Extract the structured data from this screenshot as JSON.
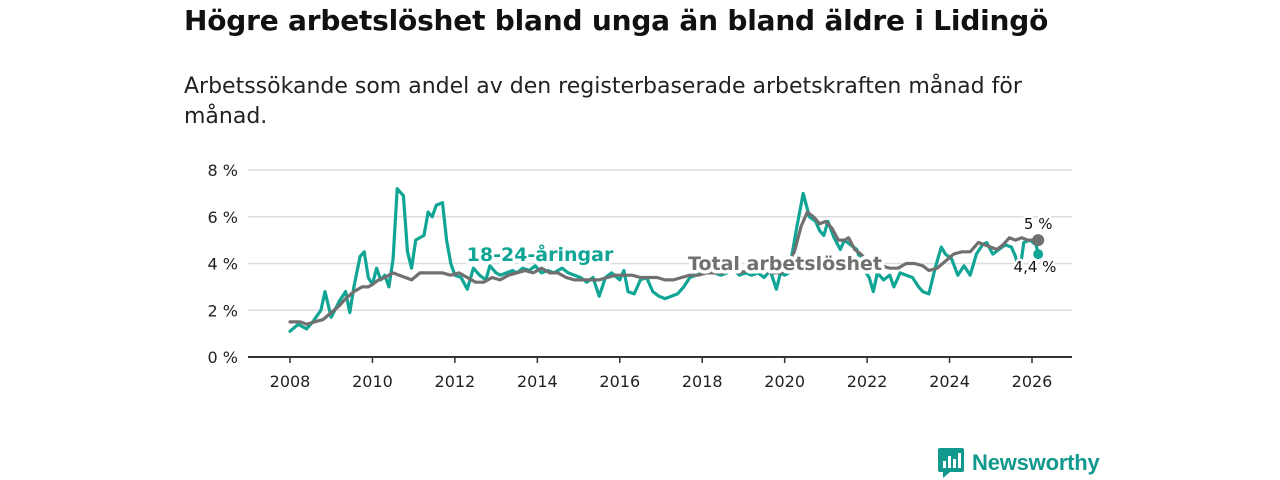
{
  "title": "Högre arbetslöshet bland unga än bland äldre i Lidingö",
  "subtitle": "Arbetssökande som andel av den registerbaserade arbetskraften månad för månad.",
  "brand": "Newsworthy",
  "colors": {
    "youth": "#10a595",
    "total": "#707070",
    "grid": "#dddddd",
    "axis": "#333333",
    "brand": "#11998e"
  },
  "chart_data": {
    "type": "line",
    "title": "Högre arbetslöshet bland unga än bland äldre i Lidingö",
    "xlabel": "",
    "ylabel": "",
    "xlim": [
      2007.5,
      2027.0
    ],
    "ylim": [
      0,
      8
    ],
    "x_ticks": [
      "2008",
      "2010",
      "2012",
      "2014",
      "2016",
      "2018",
      "2020",
      "2022",
      "2024",
      "2026"
    ],
    "y_ticks": [
      "0 %",
      "2 %",
      "4 %",
      "6 %",
      "8 %"
    ],
    "series": [
      {
        "name": "18-24-åringar",
        "label": "18-24-åringar",
        "end_label": "4,4 %",
        "points": [
          [
            2008.0,
            1.1
          ],
          [
            2008.2,
            1.4
          ],
          [
            2008.4,
            1.2
          ],
          [
            2008.55,
            1.5
          ],
          [
            2008.75,
            2.0
          ],
          [
            2008.85,
            2.8
          ],
          [
            2009.0,
            1.7
          ],
          [
            2009.2,
            2.4
          ],
          [
            2009.35,
            2.8
          ],
          [
            2009.45,
            1.9
          ],
          [
            2009.55,
            3.0
          ],
          [
            2009.7,
            4.3
          ],
          [
            2009.8,
            4.5
          ],
          [
            2009.9,
            3.4
          ],
          [
            2010.0,
            3.1
          ],
          [
            2010.1,
            3.8
          ],
          [
            2010.2,
            3.3
          ],
          [
            2010.3,
            3.5
          ],
          [
            2010.4,
            3.0
          ],
          [
            2010.5,
            4.2
          ],
          [
            2010.6,
            7.2
          ],
          [
            2010.75,
            6.9
          ],
          [
            2010.85,
            4.5
          ],
          [
            2010.95,
            3.8
          ],
          [
            2011.05,
            5.0
          ],
          [
            2011.25,
            5.2
          ],
          [
            2011.35,
            6.2
          ],
          [
            2011.45,
            6.0
          ],
          [
            2011.55,
            6.5
          ],
          [
            2011.7,
            6.6
          ],
          [
            2011.8,
            5.0
          ],
          [
            2011.9,
            4.0
          ],
          [
            2012.0,
            3.5
          ],
          [
            2012.15,
            3.4
          ],
          [
            2012.3,
            2.9
          ],
          [
            2012.45,
            3.8
          ],
          [
            2012.6,
            3.5
          ],
          [
            2012.75,
            3.3
          ],
          [
            2012.85,
            3.9
          ],
          [
            2013.0,
            3.6
          ],
          [
            2013.1,
            3.5
          ],
          [
            2013.25,
            3.6
          ],
          [
            2013.4,
            3.7
          ],
          [
            2013.5,
            3.6
          ],
          [
            2013.65,
            3.8
          ],
          [
            2013.8,
            3.7
          ],
          [
            2013.95,
            3.9
          ],
          [
            2014.1,
            3.6
          ],
          [
            2014.25,
            3.7
          ],
          [
            2014.4,
            3.6
          ],
          [
            2014.6,
            3.8
          ],
          [
            2014.75,
            3.6
          ],
          [
            2014.9,
            3.5
          ],
          [
            2015.05,
            3.4
          ],
          [
            2015.2,
            3.2
          ],
          [
            2015.35,
            3.4
          ],
          [
            2015.5,
            2.6
          ],
          [
            2015.65,
            3.4
          ],
          [
            2015.8,
            3.6
          ],
          [
            2016.0,
            3.3
          ],
          [
            2016.1,
            3.7
          ],
          [
            2016.2,
            2.8
          ],
          [
            2016.35,
            2.7
          ],
          [
            2016.5,
            3.3
          ],
          [
            2016.65,
            3.4
          ],
          [
            2016.8,
            2.8
          ],
          [
            2016.95,
            2.6
          ],
          [
            2017.1,
            2.5
          ],
          [
            2017.25,
            2.6
          ],
          [
            2017.4,
            2.7
          ],
          [
            2017.55,
            3.0
          ],
          [
            2017.7,
            3.4
          ],
          [
            2017.85,
            3.5
          ],
          [
            2018.0,
            3.6
          ],
          [
            2018.15,
            3.7
          ],
          [
            2018.3,
            3.6
          ],
          [
            2018.45,
            3.5
          ],
          [
            2018.6,
            3.6
          ],
          [
            2018.75,
            3.8
          ],
          [
            2018.9,
            3.5
          ],
          [
            2019.05,
            3.6
          ],
          [
            2019.2,
            3.5
          ],
          [
            2019.35,
            3.6
          ],
          [
            2019.5,
            3.4
          ],
          [
            2019.65,
            3.7
          ],
          [
            2019.8,
            2.9
          ],
          [
            2019.9,
            3.6
          ],
          [
            2020.0,
            3.5
          ],
          [
            2020.1,
            3.6
          ],
          [
            2020.3,
            5.6
          ],
          [
            2020.45,
            7.0
          ],
          [
            2020.6,
            6.0
          ],
          [
            2020.75,
            5.8
          ],
          [
            2020.85,
            5.4
          ],
          [
            2020.95,
            5.2
          ],
          [
            2021.05,
            5.8
          ],
          [
            2021.2,
            5.1
          ],
          [
            2021.35,
            4.6
          ],
          [
            2021.45,
            5.0
          ],
          [
            2021.6,
            4.8
          ],
          [
            2021.75,
            4.6
          ],
          [
            2021.9,
            3.8
          ],
          [
            2022.05,
            3.4
          ],
          [
            2022.15,
            2.8
          ],
          [
            2022.25,
            3.6
          ],
          [
            2022.4,
            3.3
          ],
          [
            2022.55,
            3.5
          ],
          [
            2022.65,
            3.0
          ],
          [
            2022.8,
            3.6
          ],
          [
            2022.95,
            3.5
          ],
          [
            2023.1,
            3.4
          ],
          [
            2023.25,
            3.0
          ],
          [
            2023.35,
            2.8
          ],
          [
            2023.5,
            2.7
          ],
          [
            2023.65,
            3.8
          ],
          [
            2023.8,
            4.7
          ],
          [
            2023.9,
            4.4
          ],
          [
            2024.05,
            4.2
          ],
          [
            2024.2,
            3.5
          ],
          [
            2024.35,
            3.9
          ],
          [
            2024.5,
            3.5
          ],
          [
            2024.65,
            4.4
          ],
          [
            2024.8,
            4.8
          ],
          [
            2024.9,
            4.9
          ],
          [
            2025.05,
            4.4
          ],
          [
            2025.2,
            4.6
          ],
          [
            2025.35,
            4.8
          ],
          [
            2025.5,
            4.7
          ],
          [
            2025.6,
            4.3
          ],
          [
            2025.7,
            3.6
          ],
          [
            2025.8,
            4.9
          ],
          [
            2025.95,
            5.0
          ],
          [
            2026.1,
            4.8
          ],
          [
            2026.15,
            4.4
          ]
        ]
      },
      {
        "name": "Total arbetslöshet",
        "label": "Total arbetslöshet",
        "end_label": "5 %",
        "points": [
          [
            2008.0,
            1.5
          ],
          [
            2008.25,
            1.5
          ],
          [
            2008.4,
            1.4
          ],
          [
            2008.6,
            1.5
          ],
          [
            2008.8,
            1.6
          ],
          [
            2009.0,
            1.9
          ],
          [
            2009.2,
            2.2
          ],
          [
            2009.35,
            2.5
          ],
          [
            2009.55,
            2.8
          ],
          [
            2009.75,
            3.0
          ],
          [
            2009.9,
            3.0
          ],
          [
            2010.0,
            3.1
          ],
          [
            2010.15,
            3.3
          ],
          [
            2010.3,
            3.4
          ],
          [
            2010.5,
            3.6
          ],
          [
            2010.65,
            3.5
          ],
          [
            2010.8,
            3.4
          ],
          [
            2010.95,
            3.3
          ],
          [
            2011.15,
            3.6
          ],
          [
            2011.3,
            3.6
          ],
          [
            2011.5,
            3.6
          ],
          [
            2011.7,
            3.6
          ],
          [
            2011.9,
            3.5
          ],
          [
            2012.1,
            3.6
          ],
          [
            2012.3,
            3.4
          ],
          [
            2012.5,
            3.2
          ],
          [
            2012.7,
            3.2
          ],
          [
            2012.9,
            3.4
          ],
          [
            2013.1,
            3.3
          ],
          [
            2013.3,
            3.5
          ],
          [
            2013.5,
            3.6
          ],
          [
            2013.7,
            3.7
          ],
          [
            2013.9,
            3.6
          ],
          [
            2014.1,
            3.8
          ],
          [
            2014.3,
            3.6
          ],
          [
            2014.5,
            3.6
          ],
          [
            2014.7,
            3.4
          ],
          [
            2014.9,
            3.3
          ],
          [
            2015.1,
            3.3
          ],
          [
            2015.3,
            3.3
          ],
          [
            2015.5,
            3.3
          ],
          [
            2015.7,
            3.4
          ],
          [
            2015.9,
            3.5
          ],
          [
            2016.1,
            3.5
          ],
          [
            2016.3,
            3.5
          ],
          [
            2016.5,
            3.4
          ],
          [
            2016.7,
            3.4
          ],
          [
            2016.9,
            3.4
          ],
          [
            2017.1,
            3.3
          ],
          [
            2017.3,
            3.3
          ],
          [
            2017.5,
            3.4
          ],
          [
            2017.7,
            3.5
          ],
          [
            2017.9,
            3.5
          ],
          [
            2018.1,
            3.6
          ],
          [
            2018.3,
            3.6
          ],
          [
            2018.5,
            3.6
          ],
          [
            2018.7,
            3.7
          ],
          [
            2018.9,
            3.6
          ],
          [
            2019.1,
            3.7
          ],
          [
            2019.3,
            3.7
          ],
          [
            2019.5,
            3.7
          ],
          [
            2019.7,
            3.6
          ],
          [
            2019.9,
            3.6
          ],
          [
            2020.1,
            3.8
          ],
          [
            2020.25,
            4.6
          ],
          [
            2020.4,
            5.6
          ],
          [
            2020.55,
            6.2
          ],
          [
            2020.7,
            6.0
          ],
          [
            2020.85,
            5.7
          ],
          [
            2021.0,
            5.8
          ],
          [
            2021.15,
            5.5
          ],
          [
            2021.3,
            5.0
          ],
          [
            2021.45,
            5.0
          ],
          [
            2021.55,
            5.1
          ],
          [
            2021.7,
            4.6
          ],
          [
            2021.85,
            4.4
          ],
          [
            2022.0,
            4.1
          ],
          [
            2022.15,
            4.0
          ],
          [
            2022.35,
            3.9
          ],
          [
            2022.55,
            3.8
          ],
          [
            2022.75,
            3.8
          ],
          [
            2022.95,
            4.0
          ],
          [
            2023.15,
            4.0
          ],
          [
            2023.35,
            3.9
          ],
          [
            2023.5,
            3.7
          ],
          [
            2023.7,
            3.8
          ],
          [
            2023.9,
            4.1
          ],
          [
            2024.1,
            4.4
          ],
          [
            2024.3,
            4.5
          ],
          [
            2024.5,
            4.5
          ],
          [
            2024.7,
            4.9
          ],
          [
            2024.85,
            4.8
          ],
          [
            2025.0,
            4.7
          ],
          [
            2025.15,
            4.6
          ],
          [
            2025.3,
            4.8
          ],
          [
            2025.45,
            5.1
          ],
          [
            2025.6,
            5.0
          ],
          [
            2025.75,
            5.1
          ],
          [
            2025.9,
            5.0
          ],
          [
            2026.05,
            5.0
          ],
          [
            2026.15,
            5.0
          ]
        ]
      }
    ]
  }
}
